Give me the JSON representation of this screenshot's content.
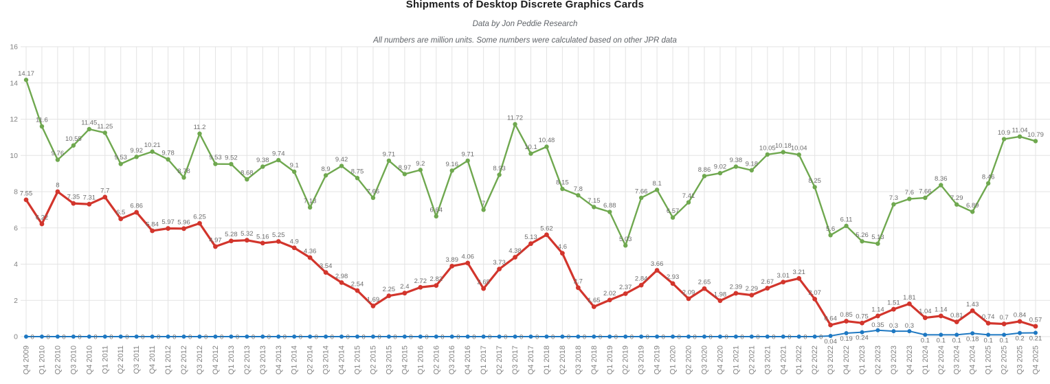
{
  "chart_data": {
    "type": "line",
    "title": "Shipments of Desktop Discrete Graphics Cards",
    "subtitle": "Data by Jon Peddie Research",
    "note": "All numbers are million units. Some numbers were calculated based on other JPR data",
    "xlabel": "",
    "ylabel": "",
    "ylim": [
      0,
      16
    ],
    "yticks": [
      0,
      2,
      4,
      6,
      8,
      10,
      12,
      14,
      16
    ],
    "grid": true,
    "legend": "none",
    "categories": [
      "Q4 2009",
      "Q1 2010",
      "Q2 2010",
      "Q3 2010",
      "Q4 2010",
      "Q1 2011",
      "Q2 2011",
      "Q3 2011",
      "Q4 2011",
      "Q1 2012",
      "Q2 2012",
      "Q3 2012",
      "Q4 2012",
      "Q1 2013",
      "Q2 2013",
      "Q3 2013",
      "Q4 2013",
      "Q1 2014",
      "Q2 2014",
      "Q3 2014",
      "Q4 2014",
      "Q1 2015",
      "Q2 2015",
      "Q3 2015",
      "Q4 2015",
      "Q1 2016",
      "Q2 2016",
      "Q3 2016",
      "Q4 2016",
      "Q1 2017",
      "Q2 2017",
      "Q3 2017",
      "Q4 2017",
      "Q1 2018",
      "Q2 2018",
      "Q3 2018",
      "Q4 2018",
      "Q1 2019",
      "Q2 2019",
      "Q3 2019",
      "Q4 2019",
      "Q1 2020",
      "Q2 2020",
      "Q3 2020",
      "Q4 2020",
      "Q1 2021",
      "Q2 2021",
      "Q3 2021",
      "Q4 2021",
      "Q1 2022",
      "Q2 2022",
      "Q3 2022",
      "Q4 2022",
      "Q1 2023",
      "Q2 2023",
      "Q3 2023",
      "Q4 2023",
      "Q1 2024",
      "Q2 2024",
      "Q3 2024",
      "Q4 2024",
      "Q1 2025",
      "Q2 2025",
      "Q3 2025",
      "Q4 2025"
    ],
    "series": [
      {
        "name": "green-series",
        "color": "#6fa84f",
        "values": [
          14.17,
          11.6,
          9.76,
          10.55,
          11.45,
          11.25,
          9.53,
          9.92,
          10.21,
          9.78,
          8.78,
          11.2,
          9.53,
          9.52,
          8.68,
          9.38,
          9.74,
          9.1,
          7.13,
          8.9,
          9.42,
          8.75,
          7.66,
          9.71,
          8.97,
          9.2,
          6.64,
          9.16,
          9.71,
          7,
          8.93,
          11.72,
          10.1,
          10.48,
          8.15,
          7.8,
          7.15,
          6.88,
          5.03,
          7.66,
          8.1,
          6.57,
          7.41,
          8.86,
          9.02,
          9.38,
          9.18,
          10.05,
          10.18,
          10.04,
          8.25,
          5.6,
          6.11,
          5.26,
          5.13,
          7.3,
          7.6,
          7.66,
          8.36,
          7.29,
          6.89,
          8.46,
          10.9,
          11.04,
          10.79
        ]
      },
      {
        "name": "red-series",
        "color": "#d2352c",
        "values": [
          7.55,
          6.22,
          8,
          7.35,
          7.31,
          7.7,
          6.5,
          6.86,
          5.84,
          5.97,
          5.96,
          6.25,
          4.97,
          5.28,
          5.32,
          5.16,
          5.25,
          4.9,
          4.36,
          3.54,
          2.98,
          2.54,
          1.69,
          2.25,
          2.4,
          2.72,
          2.82,
          3.89,
          4.06,
          2.65,
          3.73,
          4.38,
          5.13,
          5.62,
          4.6,
          2.7,
          1.65,
          2.02,
          2.37,
          2.84,
          3.66,
          2.93,
          2.09,
          2.65,
          1.98,
          2.39,
          2.29,
          2.67,
          3.01,
          3.21,
          2.07,
          0.64,
          0.85,
          0.75,
          1.14,
          1.51,
          1.81,
          1.04,
          1.14,
          0.81,
          1.43,
          0.74,
          0.7,
          0.84,
          0.57
        ]
      },
      {
        "name": "blue-series",
        "color": "#1e78c2",
        "values": [
          0,
          0,
          0,
          0,
          0,
          0,
          0,
          0,
          0,
          0,
          0,
          0,
          0,
          0,
          0,
          0,
          0,
          0,
          0,
          0,
          0,
          0,
          0,
          0,
          0,
          0,
          0,
          0,
          0,
          0,
          0,
          0,
          0,
          0,
          0,
          0,
          0,
          0,
          0,
          0,
          0,
          0,
          0,
          0,
          0,
          0,
          0,
          0,
          0,
          0,
          0,
          0.04,
          0.19,
          0.24,
          0.35,
          0.3,
          0.3,
          0.1,
          0.1,
          0.1,
          0.18,
          0.1,
          0.1,
          0.2,
          0.21
        ]
      }
    ],
    "colors": {
      "grid": "#e3e3e3",
      "data_labels": "#6d6d6d",
      "axis_ticks": "#828282",
      "title": "#1b1b1b",
      "subtitle": "#5f6368"
    }
  }
}
